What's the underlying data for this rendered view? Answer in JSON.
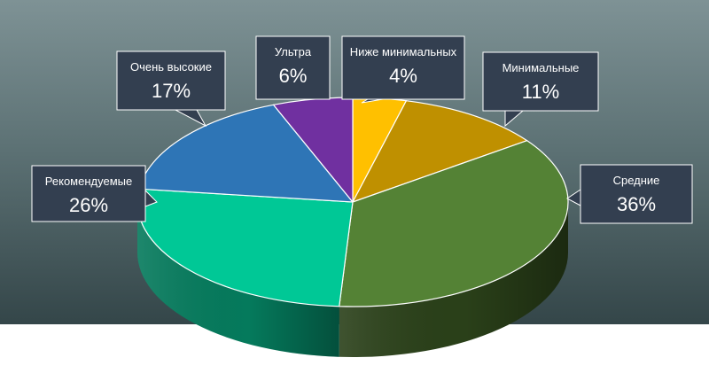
{
  "chart_data": {
    "type": "pie",
    "title": "",
    "slices": [
      {
        "label": "Ниже минимальных",
        "value": 4,
        "display": "4%",
        "color": "#ffc000",
        "side": "#8a6800"
      },
      {
        "label": "Минимальные",
        "value": 11,
        "display": "11%",
        "color": "#bf9000",
        "side": "#6a5000"
      },
      {
        "label": "Средние",
        "value": 36,
        "display": "36%",
        "color": "#548235",
        "side": "#2a4019"
      },
      {
        "label": "Рекомендуемые",
        "value": 26,
        "display": "26%",
        "color": "#00c896",
        "side": "#057a5c"
      },
      {
        "label": "Очень высокие",
        "value": 17,
        "display": "17%",
        "color": "#2e75b6",
        "side": "#1b4670"
      },
      {
        "label": "Ультра",
        "value": 6,
        "display": "6%",
        "color": "#7030a0",
        "side": "#3f1a5c"
      }
    ],
    "legend": "callouts",
    "callout_fill": "#333f50"
  }
}
